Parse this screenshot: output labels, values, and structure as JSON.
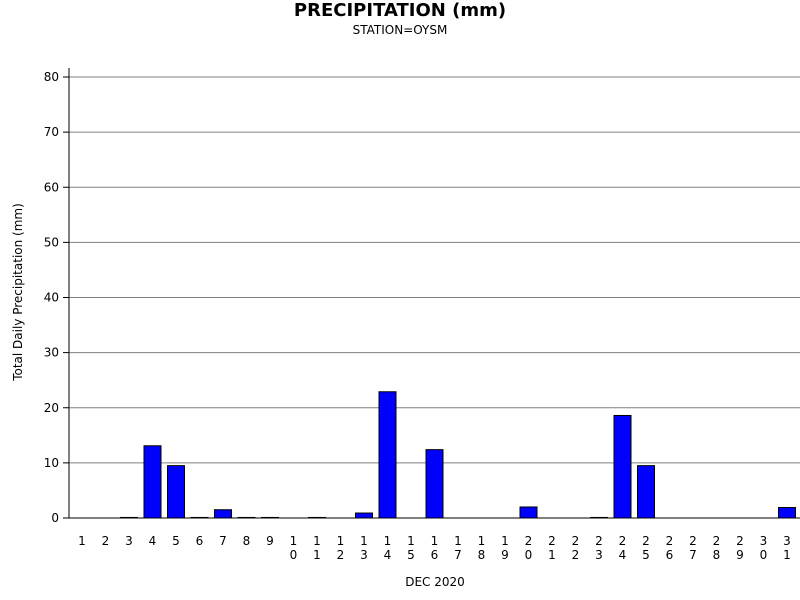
{
  "chart_data": {
    "type": "bar",
    "title": "PRECIPITATION (mm)",
    "subtitle": "STATION=OYSM",
    "xlabel": "DEC 2020",
    "ylabel": "Total Daily Precipitation (mm)",
    "ylim": [
      0,
      80
    ],
    "yticks": [
      0,
      10,
      20,
      30,
      40,
      50,
      60,
      70,
      80
    ],
    "grid": true,
    "bar_color": "#0000ff",
    "categories": [
      "1",
      "2",
      "3",
      "4",
      "5",
      "6",
      "7",
      "8",
      "9",
      "10",
      "11",
      "12",
      "13",
      "14",
      "15",
      "16",
      "17",
      "18",
      "19",
      "20",
      "21",
      "22",
      "23",
      "24",
      "25",
      "26",
      "27",
      "28",
      "29",
      "30",
      "31"
    ],
    "values": [
      0,
      0,
      0.1,
      13.1,
      9.5,
      0.1,
      1.5,
      0.1,
      0.1,
      0,
      0.1,
      0,
      0.9,
      22.9,
      0,
      12.4,
      0,
      0,
      0,
      2.0,
      0,
      0,
      0.1,
      18.6,
      9.5,
      0,
      0,
      0,
      0,
      0,
      1.9
    ]
  }
}
